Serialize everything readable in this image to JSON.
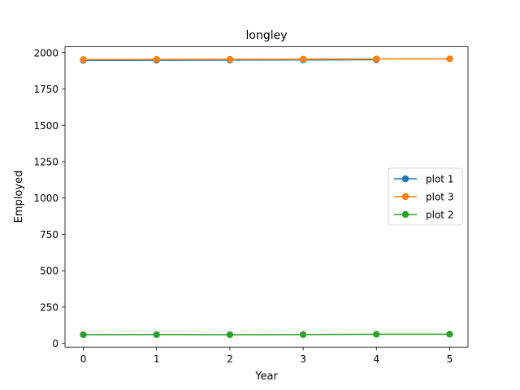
{
  "chart_data": {
    "type": "line",
    "title": "longley",
    "xlabel": "Year",
    "ylabel": "Employed",
    "x": [
      0,
      1,
      2,
      3,
      4,
      5
    ],
    "xticks": [
      "0",
      "1",
      "2",
      "3",
      "4",
      "5"
    ],
    "xlim": [
      -0.25,
      5.25
    ],
    "ylim": [
      -25,
      2040
    ],
    "yticks": [
      "0",
      "250",
      "500",
      "750",
      "1000",
      "1250",
      "1500",
      "1750",
      "2000"
    ],
    "grid": false,
    "legend_position": "center-right",
    "series": [
      {
        "name": "plot 1",
        "color": "#1f77b4",
        "x": [
          0,
          1,
          2,
          3,
          4
        ],
        "values": [
          1947,
          1948,
          1949,
          1950,
          1951
        ]
      },
      {
        "name": "plot 3",
        "color": "#ff7f0e",
        "x": [
          0,
          1,
          2,
          3,
          4,
          5
        ],
        "values": [
          1952,
          1953,
          1954,
          1955,
          1956,
          1957
        ]
      },
      {
        "name": "plot 2",
        "color": "#2ca02c",
        "x": [
          0,
          1,
          2,
          3,
          4,
          5
        ],
        "values": [
          60.3,
          61.1,
          60.2,
          61.2,
          63.2,
          63.6
        ]
      }
    ]
  }
}
